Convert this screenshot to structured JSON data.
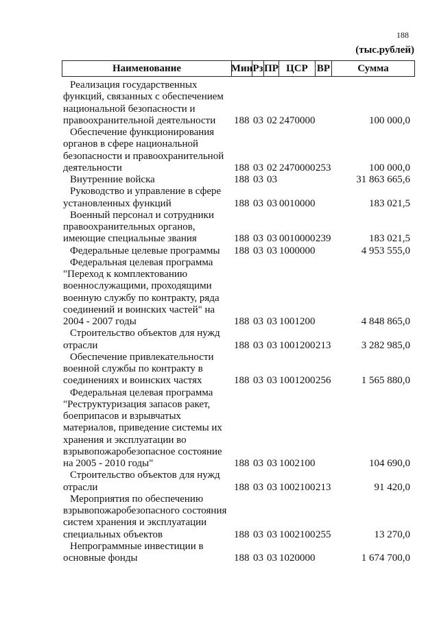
{
  "page_number": "188",
  "units": "(тыс.рублей)",
  "columns": [
    "Наименование",
    "Мин",
    "Рз",
    "ПР",
    "ЦСР",
    "ВР",
    "Сумма"
  ],
  "rows": [
    {
      "name": [
        "Реализация государственных",
        "функций, связанных с обеспечением",
        "национальной безопасности и",
        "правоохранительной деятельности"
      ],
      "min": "188",
      "rz": "03",
      "pr": "02",
      "csr": "2470000",
      "vr": "",
      "sum": "100 000,0"
    },
    {
      "name": [
        "Обеспечение функционирования",
        "органов в сфере национальной",
        "безопасности и правоохранительной",
        "деятельности"
      ],
      "min": "188",
      "rz": "03",
      "pr": "02",
      "csr": "2470000",
      "vr": "253",
      "sum": "100 000,0"
    },
    {
      "name": [
        "Внутренние войска"
      ],
      "min": "188",
      "rz": "03",
      "pr": "03",
      "csr": "",
      "vr": "",
      "sum": "31 863 665,6"
    },
    {
      "name": [
        "Руководство и управление в сфере",
        "установленных функций"
      ],
      "min": "188",
      "rz": "03",
      "pr": "03",
      "csr": "0010000",
      "vr": "",
      "sum": "183 021,5"
    },
    {
      "name": [
        "Военный персонал и сотрудники",
        "правоохранительных органов,",
        "имеющие специальные  звания"
      ],
      "min": "188",
      "rz": "03",
      "pr": "03",
      "csr": "0010000",
      "vr": "239",
      "sum": "183 021,5"
    },
    {
      "name": [
        "Федеральные целевые программы"
      ],
      "min": "188",
      "rz": "03",
      "pr": "03",
      "csr": "1000000",
      "vr": "",
      "sum": "4 953 555,0"
    },
    {
      "name": [
        "Федеральная целевая программа",
        "\"Переход к комплектованию",
        "военнослужащими, проходящими",
        "военную службу по контракту, ряда",
        "соединений и воинских частей\" на",
        "2004 - 2007 годы"
      ],
      "min": "188",
      "rz": "03",
      "pr": "03",
      "csr": "1001200",
      "vr": "",
      "sum": "4 848 865,0"
    },
    {
      "name": [
        "Строительство объектов для нужд",
        "отрасли"
      ],
      "min": "188",
      "rz": "03",
      "pr": "03",
      "csr": "1001200",
      "vr": "213",
      "sum": "3 282 985,0"
    },
    {
      "name": [
        "Обеспечение привлекательности",
        "военной службы по контракту в",
        "соединениях и воинских частях"
      ],
      "min": "188",
      "rz": "03",
      "pr": "03",
      "csr": "1001200",
      "vr": "256",
      "sum": "1 565 880,0"
    },
    {
      "name": [
        "Федеральная целевая программа",
        "\"Реструктуризация запасов ракет,",
        "боеприпасов и взрывчатых",
        "материалов, приведение системы их",
        "хранения и эксплуатации во",
        "взрывопожаробезопасное состояние",
        "на 2005 - 2010 годы\""
      ],
      "min": "188",
      "rz": "03",
      "pr": "03",
      "csr": "1002100",
      "vr": "",
      "sum": "104 690,0"
    },
    {
      "name": [
        "Строительство объектов для нужд",
        "отрасли"
      ],
      "min": "188",
      "rz": "03",
      "pr": "03",
      "csr": "1002100",
      "vr": "213",
      "sum": "91 420,0"
    },
    {
      "name": [
        "Мероприятия по обеспечению",
        "взрывопожаробезопасного состояния",
        "систем хранения и эксплуатации",
        "специальных объектов"
      ],
      "min": "188",
      "rz": "03",
      "pr": "03",
      "csr": "1002100",
      "vr": "255",
      "sum": "13 270,0"
    },
    {
      "name": [
        "Непрограммные  инвестиции в",
        "основные фонды"
      ],
      "min": "188",
      "rz": "03",
      "pr": "03",
      "csr": "1020000",
      "vr": "",
      "sum": "1 674 700,0"
    }
  ]
}
